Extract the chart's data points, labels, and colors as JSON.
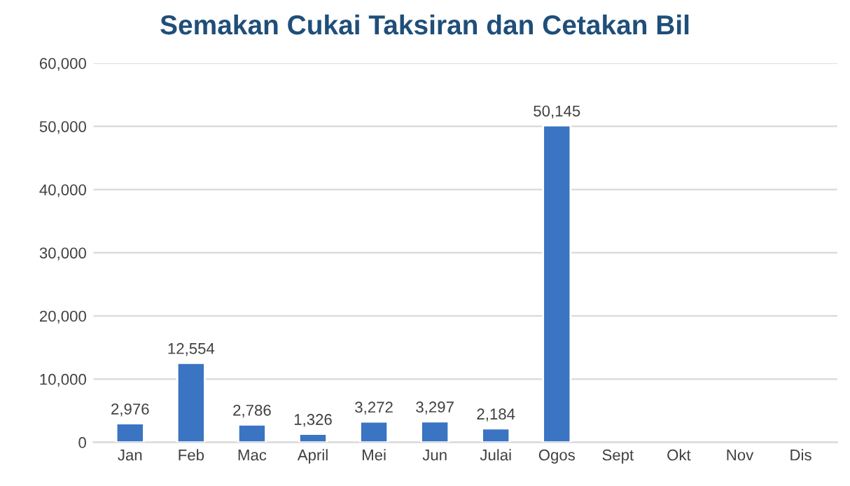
{
  "chart_data": {
    "type": "bar",
    "title": "Semakan Cukai Taksiran dan Cetakan Bil",
    "categories": [
      "Jan",
      "Feb",
      "Mac",
      "April",
      "Mei",
      "Jun",
      "Julai",
      "Ogos",
      "Sept",
      "Okt",
      "Nov",
      "Dis"
    ],
    "values": [
      2976,
      12554,
      2786,
      1326,
      3272,
      3297,
      2184,
      50145,
      null,
      null,
      null,
      null
    ],
    "value_labels": [
      "2,976",
      "12,554",
      "2,786",
      "1,326",
      "3,272",
      "3,297",
      "2,184",
      "50,145",
      null,
      null,
      null,
      null
    ],
    "color": "#3a74c2",
    "ylim": [
      0,
      60000
    ],
    "yticks": [
      0,
      {
        "value": 10000,
        "label": "10,000"
      },
      {
        "value": 20000,
        "label": "20,000"
      },
      {
        "value": 30000,
        "label": "30,000"
      },
      {
        "value": 40000,
        "label": "40,000"
      },
      {
        "value": 50000,
        "label": "50,000"
      },
      {
        "value": 60000,
        "label": "60,000"
      }
    ],
    "grid": "y",
    "legend": false
  }
}
